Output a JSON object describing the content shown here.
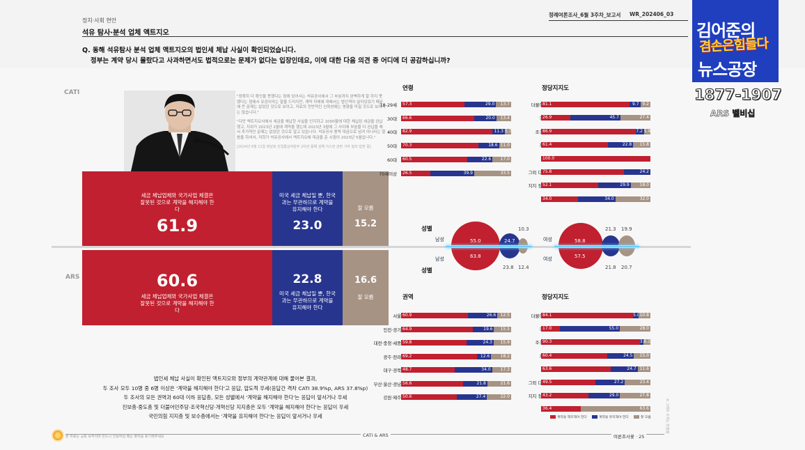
{
  "header": {
    "category": "정치·사회 현안",
    "subtitle": "석유 탐사·분석 업체 액트지오",
    "question_line1": "Q. 동해 석유탐사 분석 업체 액트지오의 법인세 체납 사실이 확인되었습니다.",
    "question_line2": "정부는 계약 당시 몰랐다고 사과하면서도 법적으로는 문제가 없다는 입장인데요, 이에 대한 다음 의견 중 어디에 더 공감하십니까?",
    "report_name": "정례여론조사_6월 3주차_보고서",
    "report_code": "WR_202406_03"
  },
  "logo": {
    "line1": "김어준의",
    "line2": "겸손은힘들다",
    "line3": "뉴스공장",
    "years": "1877-1907",
    "subtitle": "ARS 벨비십"
  },
  "side": {
    "cati": "CATI",
    "ars": "ARS"
  },
  "quote": {
    "p1": "\"정확히 더 확인을 못했다는 점에 있어서는 석유공사에서 그 부분까지 완벽하게 잘 하지 못했다는 점에서 유감이라는 말을 드리지만, 계약 자체에 대해서는 법인격이 살아있었기 때문에 큰 문제는 없었던 것으로 보이고, 자료의 전반적인 신뢰성에는 영향을 미칠 것으로 보이지는 않습니다.\"",
    "p2": "\"다만 액트지오사에서 세금을 체납한 사실을 인지하고 1000불에 대한 체납된 세금을 완납했고, 지위가 2023년 2월에 계약을 했는데 2023년 3월에 그 사이에 부분을 다 완납을 해서 추가적인 문제는 없었던 것으로 알고 있습니다. 석유공사 용역 대금으로 넘겨 아니라는 말씀을 하셔서, 저희가 석유공사에서 액트지오에 대금을 준 시점이 2023년 5월입니다.\"",
    "source": "[2024년 6월 11일 최남호 산업통상자원부 2차관 동해 심해 가스전 관련 기자 질의 답변 중]"
  },
  "cati": {
    "opt1_label": "세금 체납업체와 국가사업 체결은 잘못된 것으로 계약을 해지해야 한다",
    "opt1_value": "61.9",
    "opt2_label": "미국 세금 체납일 뿐, 한국과는 무관하므로 계약을 유지해야 한다",
    "opt2_value": "23.0",
    "opt3_label": "잘 모름",
    "opt3_value": "15.2"
  },
  "ars": {
    "opt1_label": "세금 체납업체와 국가사업 체결은 잘못된 것으로 계약을 해지해야 한다",
    "opt1_value": "60.6",
    "opt2_label": "미국 세금 체납일 뿐, 한국과는 무관하므로 계약을 유지해야 한다",
    "opt2_value": "22.8",
    "opt3_label": "잘 모름",
    "opt3_value": "16.6"
  },
  "colors": {
    "red": "#c0202f",
    "blue": "#27358f",
    "gray": "#a69384"
  },
  "chart_data": [
    {
      "type": "bar",
      "title": "연령",
      "stacked": true,
      "categories": [
        "18-29세",
        "30대",
        "40대",
        "50대",
        "60대",
        "70세이상"
      ],
      "series": [
        {
          "name": "계약을 해지해야 한다",
          "values": [
            57.3,
            66.6,
            82.9,
            70.3,
            60.5,
            26.5
          ]
        },
        {
          "name": "계약을 유지해야 한다",
          "values": [
            29.0,
            20.0,
            11.3,
            18.6,
            22.6,
            39.9
          ]
        },
        {
          "name": "잘 모름",
          "values": [
            13.7,
            13.4,
            5.7,
            11.0,
            17.0,
            33.5
          ]
        }
      ]
    },
    {
      "type": "bar",
      "title": "정당지지도",
      "stacked": true,
      "categories": [
        "더불어민주당",
        "국민의힘",
        "조국혁신당",
        "개혁신당",
        "진보당",
        "그외 다른 정당",
        "지지 정당 없음",
        "잘 모름"
      ],
      "series": [
        {
          "name": "계약을 해지해야 한다",
          "values": [
            81.1,
            26.9,
            86.9,
            61.4,
            100.0,
            75.8,
            52.1,
            34.0
          ]
        },
        {
          "name": "계약을 유지해야 한다",
          "values": [
            9.7,
            45.7,
            7.2,
            22.8,
            0,
            24.2,
            29.9,
            34.0
          ]
        },
        {
          "name": "잘 모름",
          "values": [
            9.2,
            27.4,
            5.9,
            15.8,
            0,
            0,
            18.0,
            32.0
          ]
        }
      ]
    },
    {
      "type": "bar",
      "title": "권역",
      "stacked": true,
      "categories": [
        "서울",
        "인천·경기",
        "대전·충청·세종",
        "광주·전라",
        "대구·경북",
        "부산·울산·경남",
        "강원·제주"
      ],
      "series": [
        {
          "name": "계약을 해지해야 한다",
          "values": [
            60.9,
            64.9,
            59.8,
            69.2,
            48.7,
            56.6,
            50.6
          ]
        },
        {
          "name": "계약을 유지해야 한다",
          "values": [
            26.6,
            19.6,
            24.3,
            12.6,
            34.0,
            21.8,
            27.4
          ]
        },
        {
          "name": "잘 모름",
          "values": [
            12.5,
            15.5,
            15.9,
            18.2,
            17.3,
            21.6,
            22.0
          ]
        }
      ]
    },
    {
      "type": "bar",
      "title": "정당지지도",
      "stacked": true,
      "categories": [
        "더불어민주당",
        "국민의힘",
        "조국혁신당",
        "개혁신당",
        "진보당",
        "그외 다른 정당",
        "지지 정당 없음",
        "잘 모름"
      ],
      "series": [
        {
          "name": "계약을 해지해야 한다",
          "values": [
            84.1,
            17.0,
            90.3,
            60.4,
            63.6,
            49.5,
            43.2,
            36.4
          ]
        },
        {
          "name": "계약을 유지해야 한다",
          "values": [
            5.0,
            55.0,
            3.6,
            24.5,
            24.7,
            27.2,
            29.0,
            0
          ]
        },
        {
          "name": "잘 모름",
          "values": [
            10.8,
            28.0,
            6.1,
            15.0,
            11.6,
            23.4,
            27.8,
            63.6
          ]
        }
      ]
    }
  ],
  "gender": {
    "title_top": "성별",
    "title_bottom": "성별",
    "male": "남성",
    "female": "여성",
    "cati_male": [
      "55.0",
      "24.7",
      "10.3"
    ],
    "ars_male": [
      "63.8",
      "23.8",
      "12.4"
    ],
    "cati_female": [
      "58.8",
      "21.3",
      "19.9"
    ],
    "ars_female": [
      "57.5",
      "21.8",
      "20.7"
    ]
  },
  "legend": {
    "red": "계약을 해지해야 한다",
    "blue": "계약을 유지해야 한다",
    "gray": "잘 모름"
  },
  "summary": [
    "법인세 체납 사실이 확인된 액트지오와 정부의 계약관계에 대해 물어본 결과,",
    "두 조사 모두 10명 중 6명 이상은 '계약을 해지해야 한다'고 응답, 압도적 우세(응답간 격차 CATI 38.9%p, ARS 37.8%p)",
    "두 조사의 모든 권역과 60대 이하 응답층, 모든 성별에서 '계약을 해지해야 한다'는 응답이 앞서거나 우세",
    "진보층·중도층 및 더불어민주당·조국혁신당·개혁신당 지지층은 모두 '계약을 해지해야 한다'는 응답이 우세",
    "국민의힘 지지층 및 보수층에서는 '계약을 유지해야 한다'는 응답이 앞서거나 우세"
  ],
  "right_note": "※ 그래프 수치는 반올림",
  "footer": {
    "left": "본 자료는 공표 목적이며 반드시 인용하실 때는 출처를 표기해주세요",
    "center": "CATI & ARS",
    "right": "여론조사꽃 · 25"
  }
}
